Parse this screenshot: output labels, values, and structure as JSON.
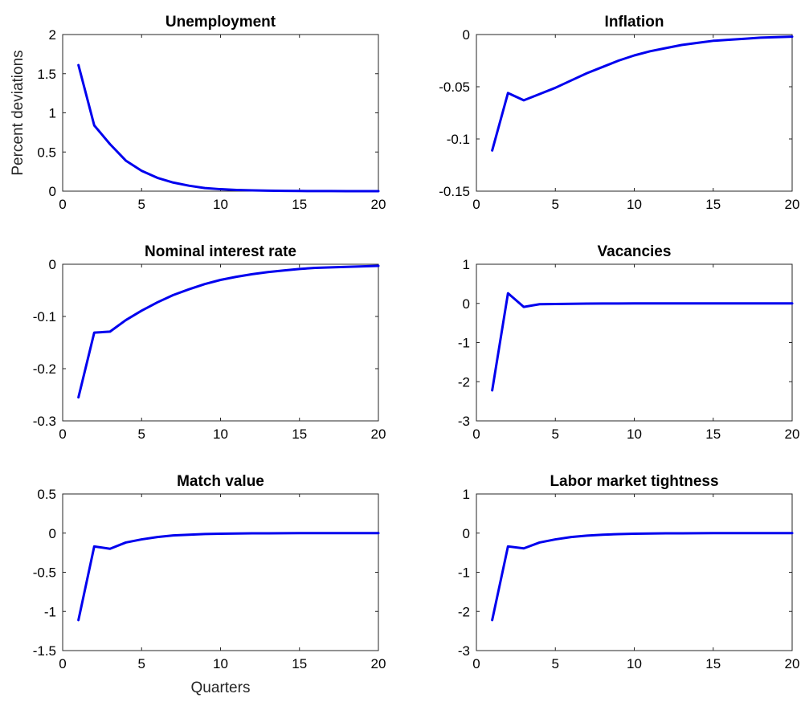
{
  "chart_data": [
    {
      "type": "line",
      "title": "Unemployment",
      "xlabel": "",
      "ylabel": "Percent deviations",
      "xlim": [
        0,
        20
      ],
      "ylim": [
        0,
        2
      ],
      "xticks": [
        0,
        5,
        10,
        15,
        20
      ],
      "yticks": [
        0,
        0.5,
        1,
        1.5,
        2
      ],
      "xtick_labels": [
        "0",
        "5",
        "10",
        "15",
        "20"
      ],
      "ytick_labels": [
        "0",
        "0.5",
        "1",
        "1.5",
        "2"
      ],
      "line_color": "#0000ee",
      "grid": false,
      "series": [
        {
          "x": [
            1,
            2,
            3,
            4,
            5,
            6,
            7,
            8,
            9,
            10,
            11,
            12,
            13,
            14,
            15,
            16,
            17,
            18,
            19,
            20
          ],
          "values": [
            1.61,
            0.84,
            0.6,
            0.39,
            0.26,
            0.17,
            0.11,
            0.07,
            0.04,
            0.025,
            0.015,
            0.01,
            0.006,
            0.004,
            0.002,
            0.001,
            0.001,
            0.0,
            0.0,
            0.0
          ]
        }
      ]
    },
    {
      "type": "line",
      "title": "Inflation",
      "xlabel": "",
      "ylabel": "",
      "xlim": [
        0,
        20
      ],
      "ylim": [
        -0.15,
        0
      ],
      "xticks": [
        0,
        5,
        10,
        15,
        20
      ],
      "yticks": [
        -0.15,
        -0.1,
        -0.05,
        0
      ],
      "xtick_labels": [
        "0",
        "5",
        "10",
        "15",
        "20"
      ],
      "ytick_labels": [
        "-0.15",
        "-0.1",
        "-0.05",
        "0"
      ],
      "line_color": "#0000ee",
      "grid": false,
      "series": [
        {
          "x": [
            1,
            2,
            3,
            4,
            5,
            6,
            7,
            8,
            9,
            10,
            11,
            12,
            13,
            14,
            15,
            16,
            17,
            18,
            19,
            20
          ],
          "values": [
            -0.111,
            -0.056,
            -0.063,
            -0.057,
            -0.051,
            -0.044,
            -0.037,
            -0.031,
            -0.025,
            -0.02,
            -0.016,
            -0.013,
            -0.01,
            -0.008,
            -0.006,
            -0.005,
            -0.004,
            -0.003,
            -0.0025,
            -0.002
          ]
        }
      ]
    },
    {
      "type": "line",
      "title": "Nominal interest rate",
      "xlabel": "",
      "ylabel": "",
      "xlim": [
        0,
        20
      ],
      "ylim": [
        -0.3,
        0
      ],
      "xticks": [
        0,
        5,
        10,
        15,
        20
      ],
      "yticks": [
        -0.3,
        -0.2,
        -0.1,
        0
      ],
      "xtick_labels": [
        "0",
        "5",
        "10",
        "15",
        "20"
      ],
      "ytick_labels": [
        "-0.3",
        "-0.2",
        "-0.1",
        "0"
      ],
      "line_color": "#0000ee",
      "grid": false,
      "series": [
        {
          "x": [
            1,
            2,
            3,
            4,
            5,
            6,
            7,
            8,
            9,
            10,
            11,
            12,
            13,
            14,
            15,
            16,
            17,
            18,
            19,
            20
          ],
          "values": [
            -0.255,
            -0.131,
            -0.129,
            -0.107,
            -0.089,
            -0.073,
            -0.059,
            -0.048,
            -0.038,
            -0.03,
            -0.024,
            -0.019,
            -0.015,
            -0.012,
            -0.009,
            -0.007,
            -0.006,
            -0.005,
            -0.004,
            -0.003
          ]
        }
      ]
    },
    {
      "type": "line",
      "title": "Vacancies",
      "xlabel": "",
      "ylabel": "",
      "xlim": [
        0,
        20
      ],
      "ylim": [
        -3,
        1
      ],
      "xticks": [
        0,
        5,
        10,
        15,
        20
      ],
      "yticks": [
        -3,
        -2,
        -1,
        0,
        1
      ],
      "xtick_labels": [
        "0",
        "5",
        "10",
        "15",
        "20"
      ],
      "ytick_labels": [
        "-3",
        "-2",
        "-1",
        "0",
        "1"
      ],
      "line_color": "#0000ee",
      "grid": false,
      "series": [
        {
          "x": [
            1,
            2,
            3,
            4,
            5,
            6,
            7,
            8,
            9,
            10,
            11,
            12,
            13,
            14,
            15,
            16,
            17,
            18,
            19,
            20
          ],
          "values": [
            -2.22,
            0.26,
            -0.09,
            -0.02,
            -0.015,
            -0.01,
            -0.005,
            -0.003,
            -0.002,
            -0.001,
            0,
            0,
            0,
            0,
            0,
            0,
            0,
            0,
            0,
            0
          ]
        }
      ]
    },
    {
      "type": "line",
      "title": "Match value",
      "xlabel": "Quarters",
      "ylabel": "",
      "xlim": [
        0,
        20
      ],
      "ylim": [
        -1.5,
        0.5
      ],
      "xticks": [
        0,
        5,
        10,
        15,
        20
      ],
      "yticks": [
        -1.5,
        -1,
        -0.5,
        0,
        0.5
      ],
      "xtick_labels": [
        "0",
        "5",
        "10",
        "15",
        "20"
      ],
      "ytick_labels": [
        "-1.5",
        "-1",
        "-0.5",
        "0",
        "0.5"
      ],
      "line_color": "#0000ee",
      "grid": false,
      "series": [
        {
          "x": [
            1,
            2,
            3,
            4,
            5,
            6,
            7,
            8,
            9,
            10,
            11,
            12,
            13,
            14,
            15,
            16,
            17,
            18,
            19,
            20
          ],
          "values": [
            -1.11,
            -0.17,
            -0.2,
            -0.12,
            -0.08,
            -0.05,
            -0.03,
            -0.02,
            -0.012,
            -0.008,
            -0.005,
            -0.003,
            -0.002,
            -0.001,
            0,
            0,
            0,
            0,
            0,
            0
          ]
        }
      ]
    },
    {
      "type": "line",
      "title": "Labor market tightness",
      "xlabel": "",
      "ylabel": "",
      "xlim": [
        0,
        20
      ],
      "ylim": [
        -3,
        1
      ],
      "xticks": [
        0,
        5,
        10,
        15,
        20
      ],
      "yticks": [
        -3,
        -2,
        -1,
        0,
        1
      ],
      "xtick_labels": [
        "0",
        "5",
        "10",
        "15",
        "20"
      ],
      "ytick_labels": [
        "-3",
        "-2",
        "-1",
        "0",
        "1"
      ],
      "line_color": "#0000ee",
      "grid": false,
      "series": [
        {
          "x": [
            1,
            2,
            3,
            4,
            5,
            6,
            7,
            8,
            9,
            10,
            11,
            12,
            13,
            14,
            15,
            16,
            17,
            18,
            19,
            20
          ],
          "values": [
            -2.22,
            -0.34,
            -0.39,
            -0.24,
            -0.16,
            -0.1,
            -0.065,
            -0.04,
            -0.025,
            -0.016,
            -0.01,
            -0.006,
            -0.004,
            -0.002,
            -0.001,
            0,
            0,
            0,
            0,
            0
          ]
        }
      ]
    }
  ]
}
